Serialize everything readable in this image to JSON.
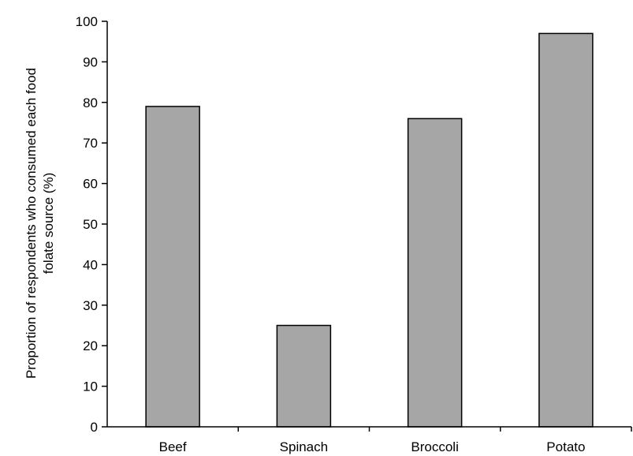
{
  "chart_data": {
    "type": "bar",
    "title": "",
    "xlabel": "",
    "ylabel_lines": [
      "Proportion of respondents who consumed each food",
      "folate source (%)"
    ],
    "categories": [
      "Beef",
      "Spinach",
      "Broccoli",
      "Potato"
    ],
    "values": [
      79,
      25,
      76,
      97
    ],
    "ylim": [
      0,
      100
    ],
    "yticks": [
      0,
      10,
      20,
      30,
      40,
      50,
      60,
      70,
      80,
      90,
      100
    ],
    "grid": false,
    "legend": "none",
    "bar_color": "#a6a6a6",
    "bar_edge_color": "#000000"
  }
}
